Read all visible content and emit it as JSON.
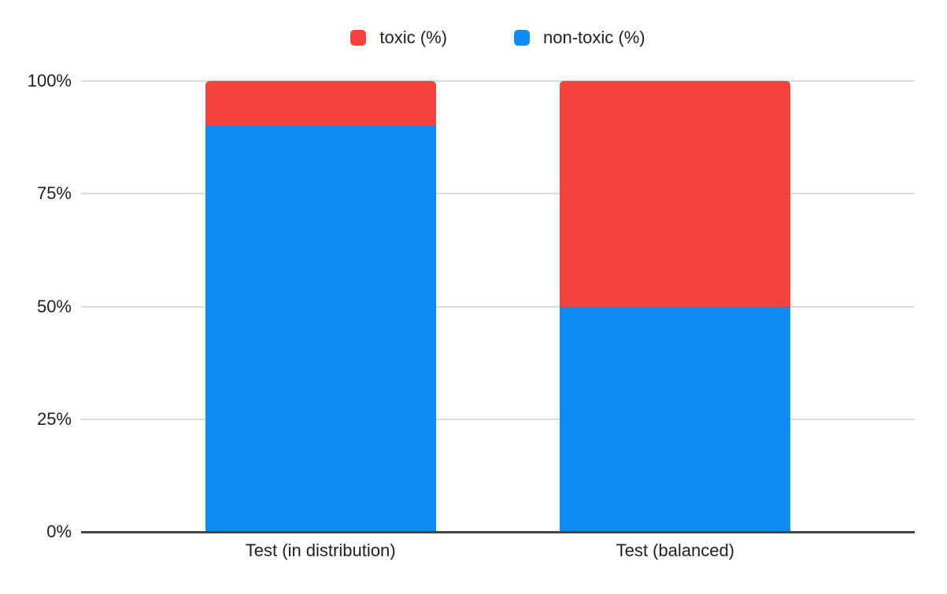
{
  "chart_data": {
    "type": "bar",
    "stacked": true,
    "title": "",
    "categories": [
      "Test (in distribution)",
      "Test (balanced)"
    ],
    "series": [
      {
        "name": "toxic (%)",
        "color": "#f4433c",
        "values": [
          10,
          50
        ]
      },
      {
        "name": "non-toxic (%)",
        "color": "#0a8cf0",
        "values": [
          90,
          50
        ]
      }
    ],
    "ylim": [
      0,
      100
    ],
    "yticks": [
      "0%",
      "25%",
      "50%",
      "75%",
      "100%"
    ],
    "grid": true,
    "legend_position": "top",
    "axis_colors": {
      "baseline": "#454545",
      "gridline": "#dadada",
      "text": "#1f1f1f"
    }
  }
}
